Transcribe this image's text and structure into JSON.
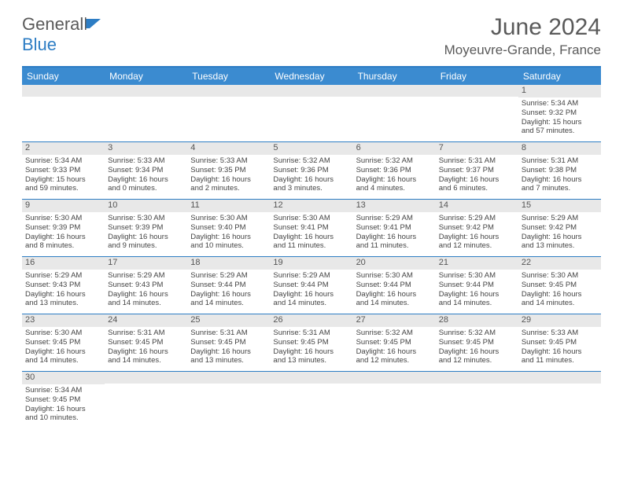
{
  "logo": {
    "text1": "General",
    "text2": "Blue"
  },
  "title": "June 2024",
  "location": "Moyeuvre-Grande, France",
  "colors": {
    "header_bg": "#3b8bd0",
    "border": "#2d7dc4",
    "daynum_bg": "#e8e8e8",
    "text": "#444444",
    "title_text": "#5a5a5a"
  },
  "weekdays": [
    "Sunday",
    "Monday",
    "Tuesday",
    "Wednesday",
    "Thursday",
    "Friday",
    "Saturday"
  ],
  "weeks": [
    [
      {
        "day": "",
        "lines": []
      },
      {
        "day": "",
        "lines": []
      },
      {
        "day": "",
        "lines": []
      },
      {
        "day": "",
        "lines": []
      },
      {
        "day": "",
        "lines": []
      },
      {
        "day": "",
        "lines": []
      },
      {
        "day": "1",
        "lines": [
          "Sunrise: 5:34 AM",
          "Sunset: 9:32 PM",
          "Daylight: 15 hours",
          "and 57 minutes."
        ]
      }
    ],
    [
      {
        "day": "2",
        "lines": [
          "Sunrise: 5:34 AM",
          "Sunset: 9:33 PM",
          "Daylight: 15 hours",
          "and 59 minutes."
        ]
      },
      {
        "day": "3",
        "lines": [
          "Sunrise: 5:33 AM",
          "Sunset: 9:34 PM",
          "Daylight: 16 hours",
          "and 0 minutes."
        ]
      },
      {
        "day": "4",
        "lines": [
          "Sunrise: 5:33 AM",
          "Sunset: 9:35 PM",
          "Daylight: 16 hours",
          "and 2 minutes."
        ]
      },
      {
        "day": "5",
        "lines": [
          "Sunrise: 5:32 AM",
          "Sunset: 9:36 PM",
          "Daylight: 16 hours",
          "and 3 minutes."
        ]
      },
      {
        "day": "6",
        "lines": [
          "Sunrise: 5:32 AM",
          "Sunset: 9:36 PM",
          "Daylight: 16 hours",
          "and 4 minutes."
        ]
      },
      {
        "day": "7",
        "lines": [
          "Sunrise: 5:31 AM",
          "Sunset: 9:37 PM",
          "Daylight: 16 hours",
          "and 6 minutes."
        ]
      },
      {
        "day": "8",
        "lines": [
          "Sunrise: 5:31 AM",
          "Sunset: 9:38 PM",
          "Daylight: 16 hours",
          "and 7 minutes."
        ]
      }
    ],
    [
      {
        "day": "9",
        "lines": [
          "Sunrise: 5:30 AM",
          "Sunset: 9:39 PM",
          "Daylight: 16 hours",
          "and 8 minutes."
        ]
      },
      {
        "day": "10",
        "lines": [
          "Sunrise: 5:30 AM",
          "Sunset: 9:39 PM",
          "Daylight: 16 hours",
          "and 9 minutes."
        ]
      },
      {
        "day": "11",
        "lines": [
          "Sunrise: 5:30 AM",
          "Sunset: 9:40 PM",
          "Daylight: 16 hours",
          "and 10 minutes."
        ]
      },
      {
        "day": "12",
        "lines": [
          "Sunrise: 5:30 AM",
          "Sunset: 9:41 PM",
          "Daylight: 16 hours",
          "and 11 minutes."
        ]
      },
      {
        "day": "13",
        "lines": [
          "Sunrise: 5:29 AM",
          "Sunset: 9:41 PM",
          "Daylight: 16 hours",
          "and 11 minutes."
        ]
      },
      {
        "day": "14",
        "lines": [
          "Sunrise: 5:29 AM",
          "Sunset: 9:42 PM",
          "Daylight: 16 hours",
          "and 12 minutes."
        ]
      },
      {
        "day": "15",
        "lines": [
          "Sunrise: 5:29 AM",
          "Sunset: 9:42 PM",
          "Daylight: 16 hours",
          "and 13 minutes."
        ]
      }
    ],
    [
      {
        "day": "16",
        "lines": [
          "Sunrise: 5:29 AM",
          "Sunset: 9:43 PM",
          "Daylight: 16 hours",
          "and 13 minutes."
        ]
      },
      {
        "day": "17",
        "lines": [
          "Sunrise: 5:29 AM",
          "Sunset: 9:43 PM",
          "Daylight: 16 hours",
          "and 14 minutes."
        ]
      },
      {
        "day": "18",
        "lines": [
          "Sunrise: 5:29 AM",
          "Sunset: 9:44 PM",
          "Daylight: 16 hours",
          "and 14 minutes."
        ]
      },
      {
        "day": "19",
        "lines": [
          "Sunrise: 5:29 AM",
          "Sunset: 9:44 PM",
          "Daylight: 16 hours",
          "and 14 minutes."
        ]
      },
      {
        "day": "20",
        "lines": [
          "Sunrise: 5:30 AM",
          "Sunset: 9:44 PM",
          "Daylight: 16 hours",
          "and 14 minutes."
        ]
      },
      {
        "day": "21",
        "lines": [
          "Sunrise: 5:30 AM",
          "Sunset: 9:44 PM",
          "Daylight: 16 hours",
          "and 14 minutes."
        ]
      },
      {
        "day": "22",
        "lines": [
          "Sunrise: 5:30 AM",
          "Sunset: 9:45 PM",
          "Daylight: 16 hours",
          "and 14 minutes."
        ]
      }
    ],
    [
      {
        "day": "23",
        "lines": [
          "Sunrise: 5:30 AM",
          "Sunset: 9:45 PM",
          "Daylight: 16 hours",
          "and 14 minutes."
        ]
      },
      {
        "day": "24",
        "lines": [
          "Sunrise: 5:31 AM",
          "Sunset: 9:45 PM",
          "Daylight: 16 hours",
          "and 14 minutes."
        ]
      },
      {
        "day": "25",
        "lines": [
          "Sunrise: 5:31 AM",
          "Sunset: 9:45 PM",
          "Daylight: 16 hours",
          "and 13 minutes."
        ]
      },
      {
        "day": "26",
        "lines": [
          "Sunrise: 5:31 AM",
          "Sunset: 9:45 PM",
          "Daylight: 16 hours",
          "and 13 minutes."
        ]
      },
      {
        "day": "27",
        "lines": [
          "Sunrise: 5:32 AM",
          "Sunset: 9:45 PM",
          "Daylight: 16 hours",
          "and 12 minutes."
        ]
      },
      {
        "day": "28",
        "lines": [
          "Sunrise: 5:32 AM",
          "Sunset: 9:45 PM",
          "Daylight: 16 hours",
          "and 12 minutes."
        ]
      },
      {
        "day": "29",
        "lines": [
          "Sunrise: 5:33 AM",
          "Sunset: 9:45 PM",
          "Daylight: 16 hours",
          "and 11 minutes."
        ]
      }
    ],
    [
      {
        "day": "30",
        "lines": [
          "Sunrise: 5:34 AM",
          "Sunset: 9:45 PM",
          "Daylight: 16 hours",
          "and 10 minutes."
        ]
      },
      {
        "day": "",
        "lines": []
      },
      {
        "day": "",
        "lines": []
      },
      {
        "day": "",
        "lines": []
      },
      {
        "day": "",
        "lines": []
      },
      {
        "day": "",
        "lines": []
      },
      {
        "day": "",
        "lines": []
      }
    ]
  ]
}
